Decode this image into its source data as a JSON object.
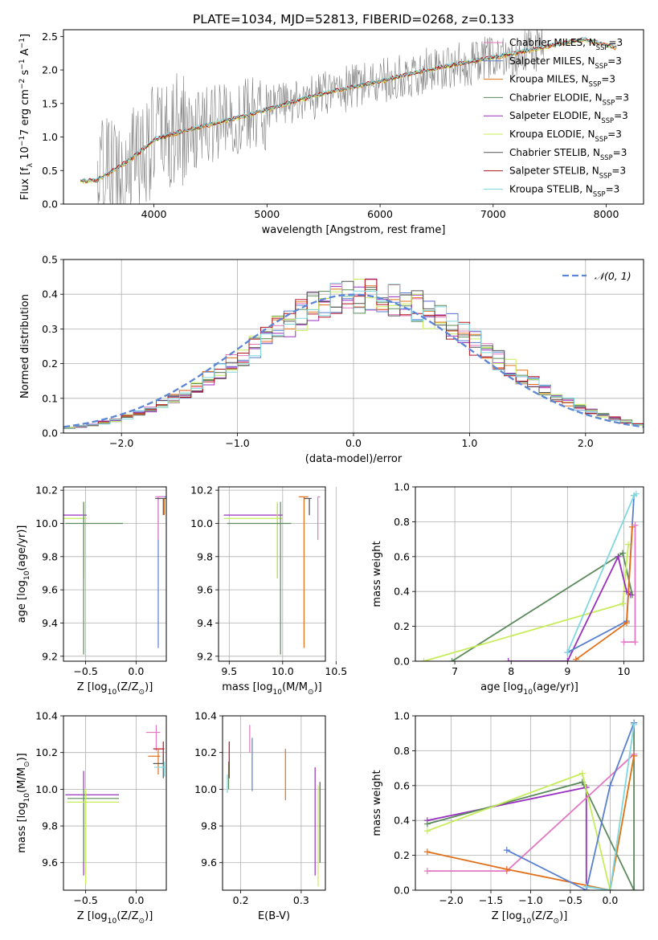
{
  "figure": {
    "title": "PLATE=1034, MJD=52813, FIBERID=0268, z=0.133"
  },
  "colors": {
    "grid": "#b0b0b0",
    "gaussian": "#5b86d6",
    "spectrum_data": "#7f7f7f"
  },
  "series": [
    {
      "name": "Chabrier MILES, N_SSP=3",
      "color": "#e377c2"
    },
    {
      "name": "Salpeter MILES, N_SSP=3",
      "color": "#5a7fd0"
    },
    {
      "name": "Kroupa MILES, N_SSP=3",
      "color": "#e1701a"
    },
    {
      "name": "Chabrier ELODIE, N_SSP=3",
      "color": "#5b8a5b"
    },
    {
      "name": "Salpeter ELODIE, N_SSP=3",
      "color": "#9a2fbf"
    },
    {
      "name": "Kroupa ELODIE, N_SSP=3",
      "color": "#c7ec5a"
    },
    {
      "name": "Chabrier STELIB, N_SSP=3",
      "color": "#555555"
    },
    {
      "name": "Salpeter STELIB, N_SSP=3",
      "color": "#b3121f"
    },
    {
      "name": "Kroupa STELIB, N_SSP=3",
      "color": "#7fd8e0"
    }
  ],
  "chart_data": [
    {
      "id": "spectrum",
      "type": "line",
      "xlabel": "wavelength [Angstrom, rest frame]",
      "ylabel": "Flux [f_λ 10^-17 erg cm^-2 s^-1 A^-1]",
      "xlim": [
        3200,
        8330
      ],
      "ylim": [
        0,
        2.6
      ],
      "xticks": [
        4000,
        5000,
        6000,
        7000,
        8000
      ],
      "yticks": [
        0.0,
        0.5,
        1.0,
        1.5,
        2.0,
        2.5
      ],
      "grid": false,
      "legend_position": "top-right",
      "model_trend": {
        "x": [
          3350,
          3500,
          3700,
          3900,
          4000,
          4200,
          4500,
          4800,
          5000,
          5300,
          5600,
          6000,
          6300,
          6600,
          7000,
          7300,
          7600,
          7800,
          8100
        ],
        "y": [
          0.33,
          0.35,
          0.55,
          0.8,
          0.95,
          1.05,
          1.18,
          1.3,
          1.4,
          1.55,
          1.68,
          1.82,
          1.95,
          2.05,
          2.18,
          2.28,
          2.38,
          2.45,
          2.32
        ]
      },
      "data_range": [
        3500,
        7450
      ]
    },
    {
      "id": "residuals",
      "type": "line",
      "xlabel": "(data-model)/error",
      "ylabel": "Normed distribution",
      "xlim": [
        -2.5,
        2.5
      ],
      "ylim": [
        0,
        0.5
      ],
      "xticks": [
        -2,
        -1,
        0,
        1,
        2
      ],
      "yticks": [
        0.0,
        0.1,
        0.2,
        0.3,
        0.4,
        0.5
      ],
      "grid": true,
      "legend": "𝒩(0, 1)",
      "legend_position": "top-right",
      "bin_edges_start": -2.5,
      "bin_width": 0.1
    },
    {
      "id": "age_vs_Z",
      "type": "scatter",
      "xlabel": "Z [log10(Z/Z⊙)]",
      "ylabel": "age  [log10(age/yr)]",
      "xlim": [
        -0.72,
        0.3
      ],
      "ylim": [
        9.17,
        10.22
      ],
      "xticks": [
        -0.5,
        0.0
      ],
      "yticks": [
        9.2,
        9.4,
        9.6,
        9.8,
        10.0,
        10.2
      ],
      "grid": true,
      "points": [
        {
          "s": 4,
          "x": -0.52,
          "y": 10.05,
          "xerr": [
            0.42,
            0.03
          ],
          "yerr": [
            0.38,
            0.07
          ]
        },
        {
          "s": 5,
          "x": -0.52,
          "y": 10.03,
          "xerr": [
            0.42,
            0.03
          ],
          "yerr": [
            0.37,
            0.1
          ]
        },
        {
          "s": 3,
          "x": -0.52,
          "y": 10.0,
          "xerr": [
            0.18,
            0.39
          ],
          "yerr": [
            0.79,
            0.13
          ]
        },
        {
          "s": 1,
          "x": 0.22,
          "y": 10.16,
          "xerr": [
            0.0,
            0.08
          ],
          "yerr": [
            0.91,
            0.0
          ]
        },
        {
          "s": 0,
          "x": 0.22,
          "y": 10.16,
          "xerr": [
            0.03,
            0.06
          ],
          "yerr": [
            0.26,
            0.0
          ]
        },
        {
          "s": 2,
          "x": 0.28,
          "y": 10.15,
          "xerr": [
            0.0,
            0.03
          ],
          "yerr": [
            0.1,
            0.0
          ]
        },
        {
          "s": 6,
          "x": 0.27,
          "y": 10.15,
          "xerr": [
            0.08,
            0.03
          ],
          "yerr": [
            0.1,
            0.0
          ]
        }
      ]
    },
    {
      "id": "age_vs_mass",
      "type": "scatter",
      "xlabel": "mass [log10(M/M⊙)]",
      "ylabel": "",
      "xlim": [
        9.4,
        10.4
      ],
      "ylim": [
        9.17,
        10.22
      ],
      "xticks": [
        9.5,
        10.0,
        10.5
      ],
      "yticks": [
        9.2,
        9.4,
        9.6,
        9.8,
        10.0,
        10.2
      ],
      "grid": true,
      "points": [
        {
          "s": 4,
          "x": 9.95,
          "y": 10.05,
          "xerr": [
            0.5,
            0.05
          ],
          "yerr": [
            0.38,
            0.07
          ]
        },
        {
          "s": 5,
          "x": 9.95,
          "y": 10.03,
          "xerr": [
            0.5,
            0.05
          ],
          "yerr": [
            0.36,
            0.1
          ]
        },
        {
          "s": 3,
          "x": 9.98,
          "y": 10.0,
          "xerr": [
            0.5,
            0.1
          ],
          "yerr": [
            0.79,
            0.13
          ]
        },
        {
          "s": 2,
          "x": 10.2,
          "y": 10.16,
          "xerr": [
            0.05,
            0.04
          ],
          "yerr": [
            0.91,
            0.0
          ]
        },
        {
          "s": 1,
          "x": 10.25,
          "y": 10.15,
          "xerr": [
            0.05,
            0.02
          ],
          "yerr": [
            0.1,
            0.0
          ]
        },
        {
          "s": 6,
          "x": 10.25,
          "y": 10.15,
          "xerr": [
            0.05,
            0.02
          ],
          "yerr": [
            0.1,
            0.0
          ]
        },
        {
          "s": 0,
          "x": 10.33,
          "y": 10.16,
          "xerr": [
            0.0,
            0.02
          ],
          "yerr": [
            0.26,
            0.0
          ]
        }
      ]
    },
    {
      "id": "mass_weight_vs_age",
      "type": "line",
      "xlabel": "age  [log10(age/yr)]",
      "ylabel": "mass weight",
      "xlim": [
        6.3,
        10.35
      ],
      "ylim": [
        0,
        1.0
      ],
      "xticks": [
        7,
        8,
        9,
        10
      ],
      "yticks": [
        0.0,
        0.2,
        0.4,
        0.6,
        0.8,
        1.0
      ],
      "grid": true,
      "lines": [
        {
          "s": 3,
          "x": [
            6.95,
            9.98,
            10.15
          ],
          "y": [
            0.0,
            0.62,
            0.38
          ]
        },
        {
          "s": 5,
          "x": [
            6.45,
            9.98,
            10.08
          ],
          "y": [
            0.0,
            0.33,
            0.67
          ]
        },
        {
          "s": 4,
          "x": [
            7.95,
            9.0,
            9.9,
            10.05,
            10.12
          ],
          "y": [
            0.0,
            0.0,
            0.6,
            0.4,
            0.38
          ]
        },
        {
          "s": 1,
          "x": [
            9.0,
            10.05,
            10.18
          ],
          "y": [
            0.05,
            0.23,
            0.95
          ]
        },
        {
          "s": 8,
          "x": [
            9.0,
            10.18,
            10.22
          ],
          "y": [
            0.05,
            0.95,
            0.96
          ]
        },
        {
          "s": 2,
          "x": [
            9.15,
            10.05,
            10.15
          ],
          "y": [
            0.01,
            0.22,
            0.77
          ]
        },
        {
          "s": 0,
          "x": [
            10.0,
            10.2,
            10.2
          ],
          "y": [
            0.11,
            0.11,
            0.78
          ]
        }
      ]
    },
    {
      "id": "mass_vs_Z",
      "type": "scatter",
      "xlabel": "Z [log10(Z/Z⊙)]",
      "ylabel": "mass [log10(M/M⊙)]",
      "xlim": [
        -0.72,
        0.3
      ],
      "ylim": [
        9.45,
        10.4
      ],
      "xticks": [
        -0.5,
        0.0
      ],
      "yticks": [
        9.6,
        9.8,
        10.0,
        10.2,
        10.4
      ],
      "grid": true,
      "points": [
        {
          "s": 4,
          "x": -0.52,
          "y": 9.97,
          "xerr": [
            0.18,
            0.35
          ],
          "yerr": [
            0.44,
            0.13
          ]
        },
        {
          "s": 3,
          "x": -0.52,
          "y": 9.95,
          "xerr": [
            0.16,
            0.35
          ],
          "yerr": [
            0.35,
            0.05
          ]
        },
        {
          "s": 5,
          "x": -0.5,
          "y": 9.93,
          "xerr": [
            0.18,
            0.33
          ],
          "yerr": [
            0.45,
            0.07
          ]
        },
        {
          "s": 0,
          "x": 0.2,
          "y": 10.31,
          "xerr": [
            0.1,
            0.04
          ],
          "yerr": [
            0.1,
            0.04
          ]
        },
        {
          "s": 7,
          "x": 0.27,
          "y": 10.22,
          "xerr": [
            0.1,
            0.01
          ],
          "yerr": [
            0.08,
            0.04
          ]
        },
        {
          "s": 2,
          "x": 0.22,
          "y": 10.18,
          "xerr": [
            0.1,
            0.02
          ],
          "yerr": [
            0.1,
            0.04
          ]
        },
        {
          "s": 6,
          "x": 0.27,
          "y": 10.14,
          "xerr": [
            0.1,
            0.01
          ],
          "yerr": [
            0.08,
            0.05
          ]
        },
        {
          "s": 8,
          "x": 0.28,
          "y": 10.12,
          "xerr": [
            0.1,
            0.01
          ],
          "yerr": [
            0.05,
            0.03
          ]
        }
      ]
    },
    {
      "id": "mass_vs_ebv",
      "type": "scatter",
      "xlabel": "E(B-V)",
      "ylabel": "",
      "xlim": [
        0.17,
        0.34
      ],
      "ylim": [
        9.45,
        10.4
      ],
      "xticks": [
        0.2,
        0.3
      ],
      "yticks": [
        9.6,
        9.8,
        10.0,
        10.2,
        10.4
      ],
      "grid": true,
      "bars": [
        {
          "s": 8,
          "x": 0.178,
          "y0": 9.98,
          "y1": 10.08
        },
        {
          "s": 3,
          "x": 0.18,
          "y0": 10.0,
          "y1": 10.15
        },
        {
          "s": 7,
          "x": 0.181,
          "y0": 10.06,
          "y1": 10.26
        },
        {
          "s": 0,
          "x": 0.215,
          "y0": 10.2,
          "y1": 10.35
        },
        {
          "s": 1,
          "x": 0.219,
          "y0": 9.99,
          "y1": 10.28
        },
        {
          "s": 2,
          "x": 0.274,
          "y0": 9.94,
          "y1": 10.22
        },
        {
          "s": 4,
          "x": 0.323,
          "y0": 9.53,
          "y1": 10.12
        },
        {
          "s": 5,
          "x": 0.328,
          "y0": 9.47,
          "y1": 10.02
        },
        {
          "s": 6,
          "x": 0.331,
          "y0": 9.6,
          "y1": 10.04
        }
      ]
    },
    {
      "id": "mass_weight_vs_Z",
      "type": "line",
      "xlabel": "Z [log10(Z/Z⊙)]",
      "ylabel": "mass weight",
      "xlim": [
        -2.45,
        0.42
      ],
      "ylim": [
        0,
        1.0
      ],
      "xticks": [
        -2.0,
        -1.5,
        -1.0,
        -0.5,
        0.0
      ],
      "yticks": [
        0.0,
        0.2,
        0.4,
        0.6,
        0.8,
        1.0
      ],
      "grid": true,
      "lines": [
        {
          "s": 4,
          "x": [
            -2.3,
            -0.3,
            -0.3
          ],
          "y": [
            0.4,
            0.59,
            0.0
          ]
        },
        {
          "s": 3,
          "x": [
            -2.3,
            -0.35,
            0.3,
            0.3
          ],
          "y": [
            0.38,
            0.62,
            0.0,
            0.96
          ]
        },
        {
          "s": 5,
          "x": [
            -2.3,
            -0.35,
            0.0,
            0.3
          ],
          "y": [
            0.34,
            0.67,
            0.0,
            0.77
          ]
        },
        {
          "s": 0,
          "x": [
            -2.3,
            -1.3,
            0.3
          ],
          "y": [
            0.11,
            0.11,
            0.78
          ]
        },
        {
          "s": 2,
          "x": [
            -2.3,
            -1.3,
            0.0,
            0.3
          ],
          "y": [
            0.22,
            0.12,
            0.0,
            0.77
          ]
        },
        {
          "s": 1,
          "x": [
            -1.3,
            -0.3,
            0.0,
            0.3
          ],
          "y": [
            0.23,
            0.0,
            0.6,
            0.96
          ]
        },
        {
          "s": 8,
          "x": [
            -0.3,
            0.0,
            0.3
          ],
          "y": [
            0.02,
            0.0,
            0.95
          ]
        }
      ]
    }
  ]
}
